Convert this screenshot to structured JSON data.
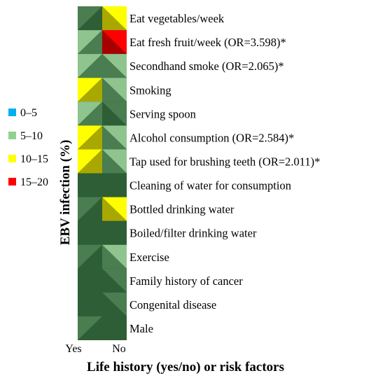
{
  "chart_data": {
    "type": "heatmap",
    "xlabel": "Life history (yes/no) or risk factors",
    "ylabel": "EBV infection (%)",
    "x_categories": [
      "Yes",
      "No"
    ],
    "y_categories": [
      "Eat vegetables/week",
      "Eat fresh fruit/week (OR=3.598)*",
      "Secondhand smoke (OR=2.065)*",
      "Smoking",
      "Serving spoon",
      "Alcohol consumption (OR=2.584)*",
      "Tap used for brushing teeth (OR=2.011)*",
      "Cleaning of water for consumption",
      "Bottled drinking water",
      "Boiled/filter drinking water",
      "Exercise",
      "Family history of cancer",
      "Congenital disease",
      "Male"
    ],
    "values": [
      [
        6,
        12
      ],
      [
        7,
        17
      ],
      [
        9,
        8
      ],
      [
        12,
        7
      ],
      [
        8,
        6
      ],
      [
        11,
        7
      ],
      [
        12,
        9
      ],
      [
        5,
        4
      ],
      [
        6,
        11
      ],
      [
        4,
        5
      ],
      [
        6,
        7
      ],
      [
        4,
        6
      ],
      [
        5,
        6
      ],
      [
        6,
        5
      ]
    ],
    "legend": {
      "placement": "left",
      "entries": [
        {
          "label": "0–5",
          "color": "#00b0f0"
        },
        {
          "label": "5–10",
          "color": "#8fd18f"
        },
        {
          "label": "10–15",
          "color": "#ffff00"
        },
        {
          "label": "15–20",
          "color": "#ff0000"
        }
      ]
    },
    "range": [
      0,
      20
    ],
    "surface_colors": {
      "low": "#2e5e36",
      "mid_dark": "#4a7d50",
      "mid": "#8fc48f",
      "light": "#c9ecc2",
      "yellow": "#ffff00",
      "olive": "#a8a800",
      "red": "#ff0000",
      "dark_red": "#a80000"
    }
  }
}
